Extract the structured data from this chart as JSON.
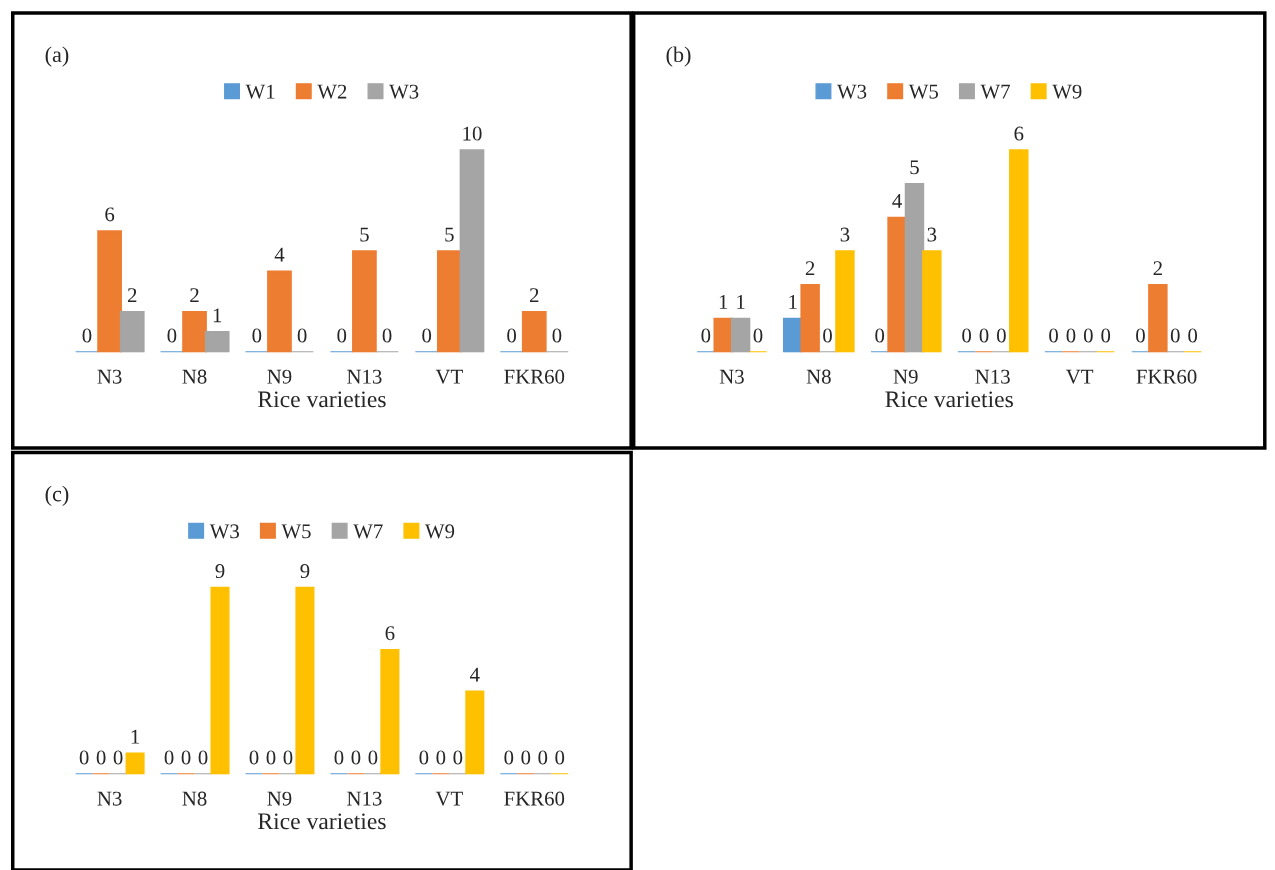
{
  "chart_data": [
    {
      "type": "bar",
      "categories": [
        "N3",
        "N8",
        "N9",
        "N13",
        "VT",
        "FKR60"
      ],
      "xlabel": "Rice varieties",
      "annotations": [
        "(a)"
      ],
      "legend": "top",
      "data_labels": true,
      "series": [
        {
          "name": "W1",
          "color": "#5b9bd5",
          "values": [
            0,
            0,
            0,
            0,
            0,
            0
          ]
        },
        {
          "name": "W2",
          "color": "#ed7d31",
          "values": [
            6,
            2,
            4,
            5,
            5,
            2
          ]
        },
        {
          "name": "W3",
          "color": "#a5a5a5",
          "values": [
            2,
            1,
            0,
            0,
            10,
            0
          ]
        }
      ]
    },
    {
      "type": "bar",
      "categories": [
        "N3",
        "N8",
        "N9",
        "N13",
        "VT",
        "FKR60"
      ],
      "xlabel": "Rice varieties",
      "annotations": [
        "(b)"
      ],
      "legend": "top",
      "data_labels": true,
      "series": [
        {
          "name": "W3",
          "color": "#5b9bd5",
          "values": [
            0,
            1,
            0,
            0,
            0,
            0
          ]
        },
        {
          "name": "W5",
          "color": "#ed7d31",
          "values": [
            1,
            2,
            4,
            0,
            0,
            2
          ]
        },
        {
          "name": "W7",
          "color": "#a5a5a5",
          "values": [
            1,
            0,
            5,
            0,
            0,
            0
          ]
        },
        {
          "name": "W9",
          "color": "#ffc000",
          "values": [
            0,
            3,
            3,
            6,
            0,
            0
          ]
        }
      ]
    },
    {
      "type": "bar",
      "categories": [
        "N3",
        "N8",
        "N9",
        "N13",
        "VT",
        "FKR60"
      ],
      "xlabel": "Rice varieties",
      "annotations": [
        "(c)"
      ],
      "legend": "top",
      "data_labels": true,
      "series": [
        {
          "name": "W3",
          "color": "#5b9bd5",
          "values": [
            0,
            0,
            0,
            0,
            0,
            0
          ]
        },
        {
          "name": "W5",
          "color": "#ed7d31",
          "values": [
            0,
            0,
            0,
            0,
            0,
            0
          ]
        },
        {
          "name": "W7",
          "color": "#a5a5a5",
          "values": [
            0,
            0,
            0,
            0,
            0,
            0
          ]
        },
        {
          "name": "W9",
          "color": "#ffc000",
          "values": [
            1,
            9,
            9,
            6,
            4,
            0
          ]
        }
      ]
    }
  ]
}
